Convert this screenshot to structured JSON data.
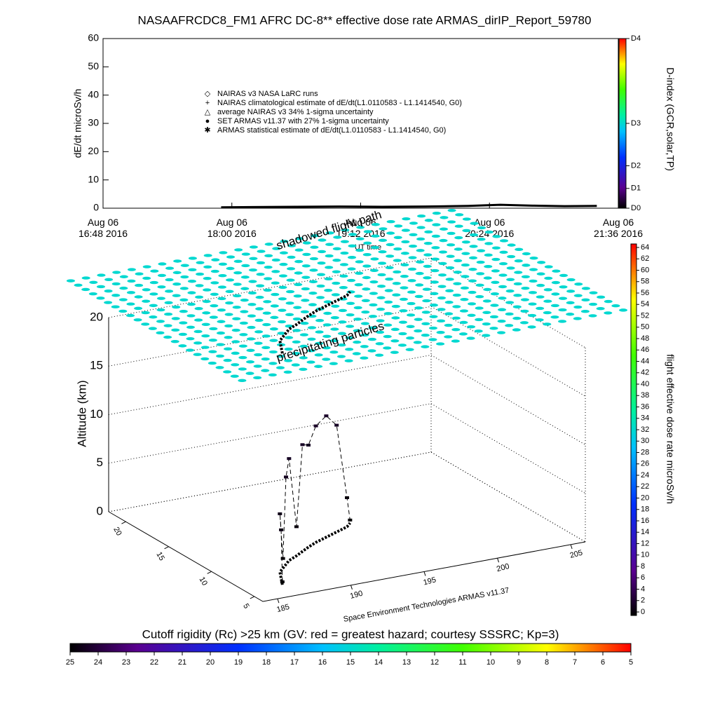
{
  "chart_data": [
    {
      "type": "line",
      "title": "NASAAFRCDC8_FM1 AFRC DC-8** effective dose rate ARMAS_dirIP_Report_59780",
      "ylabel": "dE/dt microSv/h",
      "xlabel": "UT time",
      "xlim": [
        16.8,
        21.6
      ],
      "xticks": [
        {
          "value": 16.8,
          "label": "Aug 06\n16:48 2016"
        },
        {
          "value": 18.0,
          "label": "Aug 06\n18:00 2016"
        },
        {
          "value": 19.2,
          "label": "Aug 06\n19:12 2016"
        },
        {
          "value": 20.4,
          "label": "Aug 06\n20:24 2016"
        },
        {
          "value": 21.6,
          "label": "Aug 06\n21:36 2016"
        }
      ],
      "ylim": [
        0,
        60
      ],
      "yticks": [
        0,
        10,
        20,
        30,
        40,
        50,
        60
      ],
      "y2label": "D-index (GCR,solar,TP)",
      "y2lim": [
        0,
        60
      ],
      "y2ticks": [
        {
          "value": 0,
          "label": "D0"
        },
        {
          "value": 7,
          "label": "D1"
        },
        {
          "value": 15,
          "label": "D2"
        },
        {
          "value": 30,
          "label": "D3"
        },
        {
          "value": 60,
          "label": "D4"
        }
      ],
      "legend": [
        "NAIRAS v3 NASA LaRC runs",
        "NAIRAS climatological estimate of dE/dt(L1.0110583 - L1.1414540, G0)",
        "average NAIRAS v3 34% 1-sigma uncertainty",
        "SET ARMAS v11.37 with 27% 1-sigma uncertainty",
        "ARMAS statistical estimate of dE/dt(L1.0110583 - L1.1414540, G0)"
      ],
      "series": [
        {
          "color": "#000000",
          "x": [
            17.9,
            18.2,
            18.6,
            19.0,
            19.4,
            19.8,
            20.2,
            20.5,
            20.8,
            21.1,
            21.4
          ],
          "values": [
            0.3,
            0.4,
            0.5,
            0.6,
            0.5,
            0.6,
            0.8,
            1.2,
            0.9,
            0.7,
            0.8
          ]
        }
      ]
    },
    {
      "type": "scatter3d",
      "annotations": [
        "shadowed flight path",
        "precipitating particles"
      ],
      "zlabel": "Altitude (km)",
      "credit": "Space Environment Technologies ARMAS v11.37",
      "xlim": [
        184,
        206
      ],
      "xticks": [
        185,
        190,
        195,
        200,
        205
      ],
      "ylim": [
        4,
        22
      ],
      "yticks": [
        5,
        10,
        15,
        20
      ],
      "zlim": [
        0,
        20
      ],
      "zticks": [
        0,
        5,
        10,
        15,
        20
      ],
      "rigidity_value": 15,
      "x": [
        186.5,
        187,
        187.5,
        188,
        188.5,
        189,
        189.8,
        190.5,
        191.2,
        192,
        193,
        194,
        195,
        195.5
      ],
      "y": [
        6,
        7,
        8,
        8.5,
        9,
        9.5,
        10,
        10.5,
        11,
        11.5,
        12,
        12.5,
        13,
        13.5
      ],
      "z": [
        0.3,
        5,
        6,
        1,
        9,
        10.5,
        3,
        11,
        10.5,
        12,
        12.5,
        11,
        3,
        0.3
      ],
      "dose": [
        0.2,
        1.0,
        1.2,
        0.3,
        1.6,
        1.8,
        0.6,
        2.0,
        1.9,
        2.1,
        2.2,
        1.9,
        0.6,
        0.2
      ],
      "colorbar": {
        "label": "flight effective dose rate microSv/h",
        "lim": [
          0,
          64
        ],
        "ticks": [
          0,
          2,
          4,
          6,
          8,
          10,
          12,
          14,
          16,
          18,
          20,
          22,
          24,
          26,
          28,
          30,
          32,
          34,
          36,
          38,
          40,
          42,
          44,
          46,
          48,
          50,
          52,
          54,
          56,
          58,
          60,
          62,
          64
        ]
      }
    },
    {
      "type": "colorbar",
      "title": "Cutoff rigidity (Rc) >25 km (GV: red = greatest hazard; courtesy SSSRC; Kp=3)",
      "lim": [
        25,
        5
      ],
      "ticks": [
        25,
        24,
        23,
        22,
        21,
        20,
        19,
        18,
        17,
        16,
        15,
        14,
        13,
        12,
        11,
        10,
        9,
        8,
        7,
        6,
        5
      ]
    }
  ]
}
